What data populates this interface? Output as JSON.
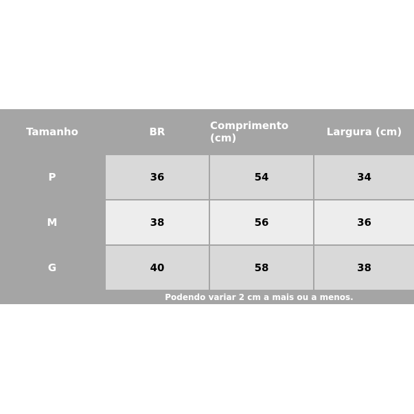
{
  "table": {
    "headers": [
      "Tamanho",
      "BR",
      "Comprimento (cm)",
      "Largura (cm)"
    ],
    "rows": [
      [
        "P",
        "36",
        "54",
        "34"
      ],
      [
        "M",
        "38",
        "56",
        "36"
      ],
      [
        "G",
        "40",
        "58",
        "38"
      ]
    ],
    "footnote": "Podendo variar 2 cm a mais ou a menos."
  },
  "colors": {
    "header": "#a5a5a5",
    "row_light": "#d9d9d9",
    "row_lighter": "#ededed",
    "border": "#ffffff"
  }
}
